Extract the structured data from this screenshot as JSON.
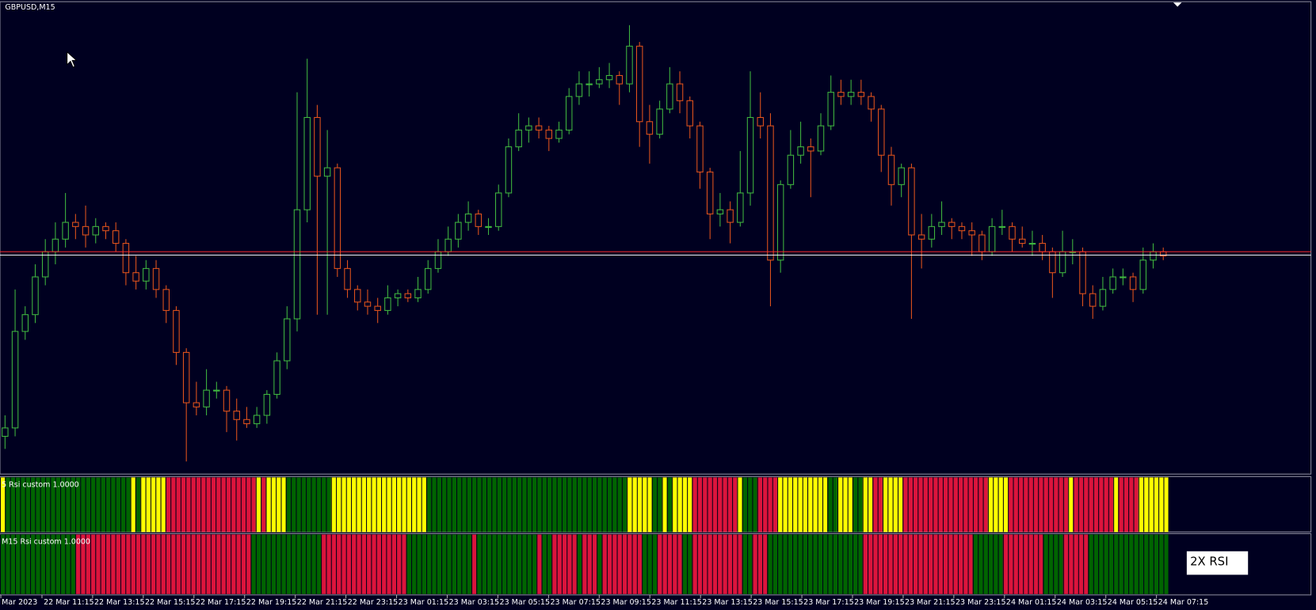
{
  "chart_data": {
    "type": "candlestick",
    "title": "GBPUSD,M15",
    "ylim": [
      0,
      563
    ],
    "bull_color": "#3fb63f",
    "bear_color": "#e2531c",
    "candles": [
      [
        45,
        70,
        30,
        55
      ],
      [
        55,
        220,
        45,
        170
      ],
      [
        170,
        200,
        160,
        190
      ],
      [
        190,
        250,
        180,
        235
      ],
      [
        235,
        280,
        225,
        265
      ],
      [
        265,
        300,
        250,
        280
      ],
      [
        280,
        335,
        270,
        300
      ],
      [
        300,
        310,
        280,
        295
      ],
      [
        295,
        320,
        270,
        285
      ],
      [
        285,
        305,
        275,
        295
      ],
      [
        295,
        300,
        280,
        290
      ],
      [
        290,
        300,
        265,
        275
      ],
      [
        275,
        280,
        225,
        240
      ],
      [
        240,
        260,
        220,
        230
      ],
      [
        230,
        255,
        220,
        245
      ],
      [
        245,
        255,
        210,
        220
      ],
      [
        220,
        225,
        180,
        195
      ],
      [
        195,
        200,
        130,
        145
      ],
      [
        145,
        150,
        15,
        85
      ],
      [
        85,
        110,
        70,
        80
      ],
      [
        80,
        125,
        70,
        100
      ],
      [
        100,
        110,
        90,
        100
      ],
      [
        100,
        105,
        50,
        75
      ],
      [
        75,
        90,
        40,
        65
      ],
      [
        65,
        80,
        55,
        60
      ],
      [
        60,
        80,
        55,
        70
      ],
      [
        70,
        100,
        60,
        95
      ],
      [
        95,
        145,
        90,
        135
      ],
      [
        135,
        200,
        125,
        185
      ],
      [
        185,
        455,
        170,
        315
      ],
      [
        315,
        495,
        300,
        425
      ],
      [
        425,
        440,
        190,
        355
      ],
      [
        355,
        410,
        190,
        365
      ],
      [
        365,
        370,
        235,
        245
      ],
      [
        245,
        255,
        210,
        220
      ],
      [
        220,
        225,
        195,
        205
      ],
      [
        205,
        220,
        190,
        200
      ],
      [
        200,
        210,
        180,
        195
      ],
      [
        195,
        225,
        190,
        210
      ],
      [
        210,
        220,
        200,
        215
      ],
      [
        215,
        220,
        205,
        210
      ],
      [
        210,
        235,
        205,
        220
      ],
      [
        220,
        255,
        215,
        245
      ],
      [
        245,
        280,
        240,
        265
      ],
      [
        265,
        295,
        260,
        280
      ],
      [
        280,
        310,
        270,
        300
      ],
      [
        300,
        325,
        290,
        310
      ],
      [
        310,
        315,
        285,
        295
      ],
      [
        295,
        305,
        285,
        295
      ],
      [
        295,
        345,
        290,
        335
      ],
      [
        335,
        400,
        330,
        390
      ],
      [
        390,
        430,
        385,
        410
      ],
      [
        410,
        425,
        395,
        415
      ],
      [
        415,
        425,
        400,
        410
      ],
      [
        410,
        415,
        385,
        400
      ],
      [
        400,
        420,
        395,
        410
      ],
      [
        410,
        460,
        405,
        450
      ],
      [
        450,
        480,
        440,
        465
      ],
      [
        465,
        480,
        450,
        465
      ],
      [
        465,
        485,
        460,
        470
      ],
      [
        470,
        490,
        460,
        475
      ],
      [
        475,
        480,
        440,
        465
      ],
      [
        465,
        535,
        455,
        510
      ],
      [
        510,
        515,
        390,
        420
      ],
      [
        420,
        440,
        370,
        405
      ],
      [
        405,
        445,
        400,
        435
      ],
      [
        435,
        485,
        430,
        465
      ],
      [
        465,
        480,
        430,
        445
      ],
      [
        445,
        450,
        400,
        415
      ],
      [
        415,
        420,
        340,
        360
      ],
      [
        360,
        365,
        280,
        310
      ],
      [
        310,
        335,
        295,
        315
      ],
      [
        315,
        325,
        275,
        300
      ],
      [
        300,
        385,
        295,
        335
      ],
      [
        335,
        480,
        320,
        425
      ],
      [
        425,
        455,
        400,
        415
      ],
      [
        415,
        430,
        200,
        255
      ],
      [
        255,
        350,
        240,
        345
      ],
      [
        345,
        410,
        340,
        380
      ],
      [
        380,
        420,
        370,
        390
      ],
      [
        390,
        400,
        330,
        385
      ],
      [
        385,
        430,
        380,
        415
      ],
      [
        415,
        475,
        410,
        455
      ],
      [
        455,
        470,
        440,
        450
      ],
      [
        450,
        470,
        440,
        455
      ],
      [
        455,
        470,
        440,
        450
      ],
      [
        450,
        455,
        420,
        435
      ],
      [
        435,
        440,
        360,
        380
      ],
      [
        380,
        390,
        320,
        345
      ],
      [
        345,
        370,
        330,
        365
      ],
      [
        365,
        370,
        185,
        285
      ],
      [
        285,
        310,
        245,
        280
      ],
      [
        280,
        310,
        270,
        295
      ],
      [
        295,
        325,
        285,
        300
      ],
      [
        300,
        305,
        280,
        295
      ],
      [
        295,
        300,
        280,
        290
      ],
      [
        290,
        300,
        260,
        285
      ],
      [
        285,
        290,
        255,
        265
      ],
      [
        265,
        305,
        260,
        295
      ],
      [
        295,
        315,
        285,
        295
      ],
      [
        295,
        300,
        265,
        280
      ],
      [
        280,
        295,
        270,
        275
      ],
      [
        275,
        290,
        260,
        275
      ],
      [
        275,
        285,
        255,
        265
      ],
      [
        265,
        270,
        210,
        240
      ],
      [
        240,
        290,
        235,
        265
      ],
      [
        265,
        280,
        250,
        265
      ],
      [
        265,
        270,
        200,
        215
      ],
      [
        215,
        225,
        185,
        200
      ],
      [
        200,
        235,
        195,
        220
      ],
      [
        220,
        245,
        215,
        235
      ],
      [
        235,
        245,
        225,
        235
      ],
      [
        235,
        240,
        205,
        220
      ],
      [
        220,
        270,
        215,
        255
      ],
      [
        255,
        275,
        245,
        265
      ],
      [
        265,
        270,
        255,
        260
      ]
    ],
    "price_lines": [
      {
        "value": 265,
        "color": "#ff2a2a"
      },
      {
        "value": 261,
        "color": "#ffffff"
      }
    ],
    "indicators": [
      {
        "label": "5 Rsi custom 1.0000",
        "runs": [
          {
            "color": "#ffff00",
            "count": 1
          },
          {
            "color": "#006400",
            "count": 25
          },
          {
            "color": "#ffff00",
            "count": 1
          },
          {
            "color": "#006400",
            "count": 1
          },
          {
            "color": "#ffff00",
            "count": 5
          },
          {
            "color": "#dc143c",
            "count": 18
          },
          {
            "color": "#ffff00",
            "count": 1
          },
          {
            "color": "#dc143c",
            "count": 1
          },
          {
            "color": "#ffff00",
            "count": 4
          },
          {
            "color": "#006400",
            "count": 9
          },
          {
            "color": "#ffff00",
            "count": 19
          },
          {
            "color": "#006400",
            "count": 40
          },
          {
            "color": "#ffff00",
            "count": 5
          },
          {
            "color": "#006400",
            "count": 2
          },
          {
            "color": "#ffff00",
            "count": 1
          },
          {
            "color": "#006400",
            "count": 1
          },
          {
            "color": "#ffff00",
            "count": 4
          },
          {
            "color": "#dc143c",
            "count": 9
          },
          {
            "color": "#ffff00",
            "count": 1
          },
          {
            "color": "#006400",
            "count": 3
          },
          {
            "color": "#dc143c",
            "count": 4
          },
          {
            "color": "#ffff00",
            "count": 10
          },
          {
            "color": "#006400",
            "count": 2
          },
          {
            "color": "#ffff00",
            "count": 3
          },
          {
            "color": "#006400",
            "count": 2
          },
          {
            "color": "#ffff00",
            "count": 2
          },
          {
            "color": "#dc143c",
            "count": 2
          },
          {
            "color": "#ffff00",
            "count": 4
          },
          {
            "color": "#dc143c",
            "count": 17
          },
          {
            "color": "#ffff00",
            "count": 4
          },
          {
            "color": "#dc143c",
            "count": 12
          },
          {
            "color": "#ffff00",
            "count": 1
          },
          {
            "color": "#dc143c",
            "count": 8
          },
          {
            "color": "#ffff00",
            "count": 1
          },
          {
            "color": "#dc143c",
            "count": 4
          },
          {
            "color": "#ffff00",
            "count": 6
          }
        ]
      },
      {
        "label": "M15 Rsi custom 1.0000",
        "runs": [
          {
            "color": "#006400",
            "count": 15
          },
          {
            "color": "#dc143c",
            "count": 35
          },
          {
            "color": "#006400",
            "count": 14
          },
          {
            "color": "#dc143c",
            "count": 17
          },
          {
            "color": "#006400",
            "count": 13
          },
          {
            "color": "#dc143c",
            "count": 1
          },
          {
            "color": "#006400",
            "count": 12
          },
          {
            "color": "#dc143c",
            "count": 1
          },
          {
            "color": "#006400",
            "count": 2
          },
          {
            "color": "#dc143c",
            "count": 5
          },
          {
            "color": "#006400",
            "count": 1
          },
          {
            "color": "#dc143c",
            "count": 3
          },
          {
            "color": "#006400",
            "count": 1
          },
          {
            "color": "#dc143c",
            "count": 8
          },
          {
            "color": "#006400",
            "count": 3
          },
          {
            "color": "#dc143c",
            "count": 5
          },
          {
            "color": "#006400",
            "count": 2
          },
          {
            "color": "#dc143c",
            "count": 10
          },
          {
            "color": "#006400",
            "count": 2
          },
          {
            "color": "#dc143c",
            "count": 3
          },
          {
            "color": "#006400",
            "count": 19
          },
          {
            "color": "#dc143c",
            "count": 22
          },
          {
            "color": "#006400",
            "count": 6
          },
          {
            "color": "#dc143c",
            "count": 8
          },
          {
            "color": "#006400",
            "count": 4
          },
          {
            "color": "#dc143c",
            "count": 5
          },
          {
            "color": "#006400",
            "count": 16
          }
        ]
      }
    ],
    "box_label": "2X RSI",
    "time_labels": [
      "Mar 2023",
      "22 Mar 11:15",
      "22 Mar 13:15",
      "22 Mar 15:15",
      "22 Mar 17:15",
      "22 Mar 19:15",
      "22 Mar 21:15",
      "22 Mar 23:15",
      "23 Mar 01:15",
      "23 Mar 03:15",
      "23 Mar 05:15",
      "23 Mar 07:15",
      "23 Mar 09:15",
      "23 Mar 11:15",
      "23 Mar 13:15",
      "23 Mar 15:15",
      "23 Mar 17:15",
      "23 Mar 19:15",
      "23 Mar 21:15",
      "23 Mar 23:15",
      "24 Mar 01:15",
      "24 Mar 03:15",
      "24 Mar 05:15",
      "24 Mar 07:15"
    ]
  }
}
